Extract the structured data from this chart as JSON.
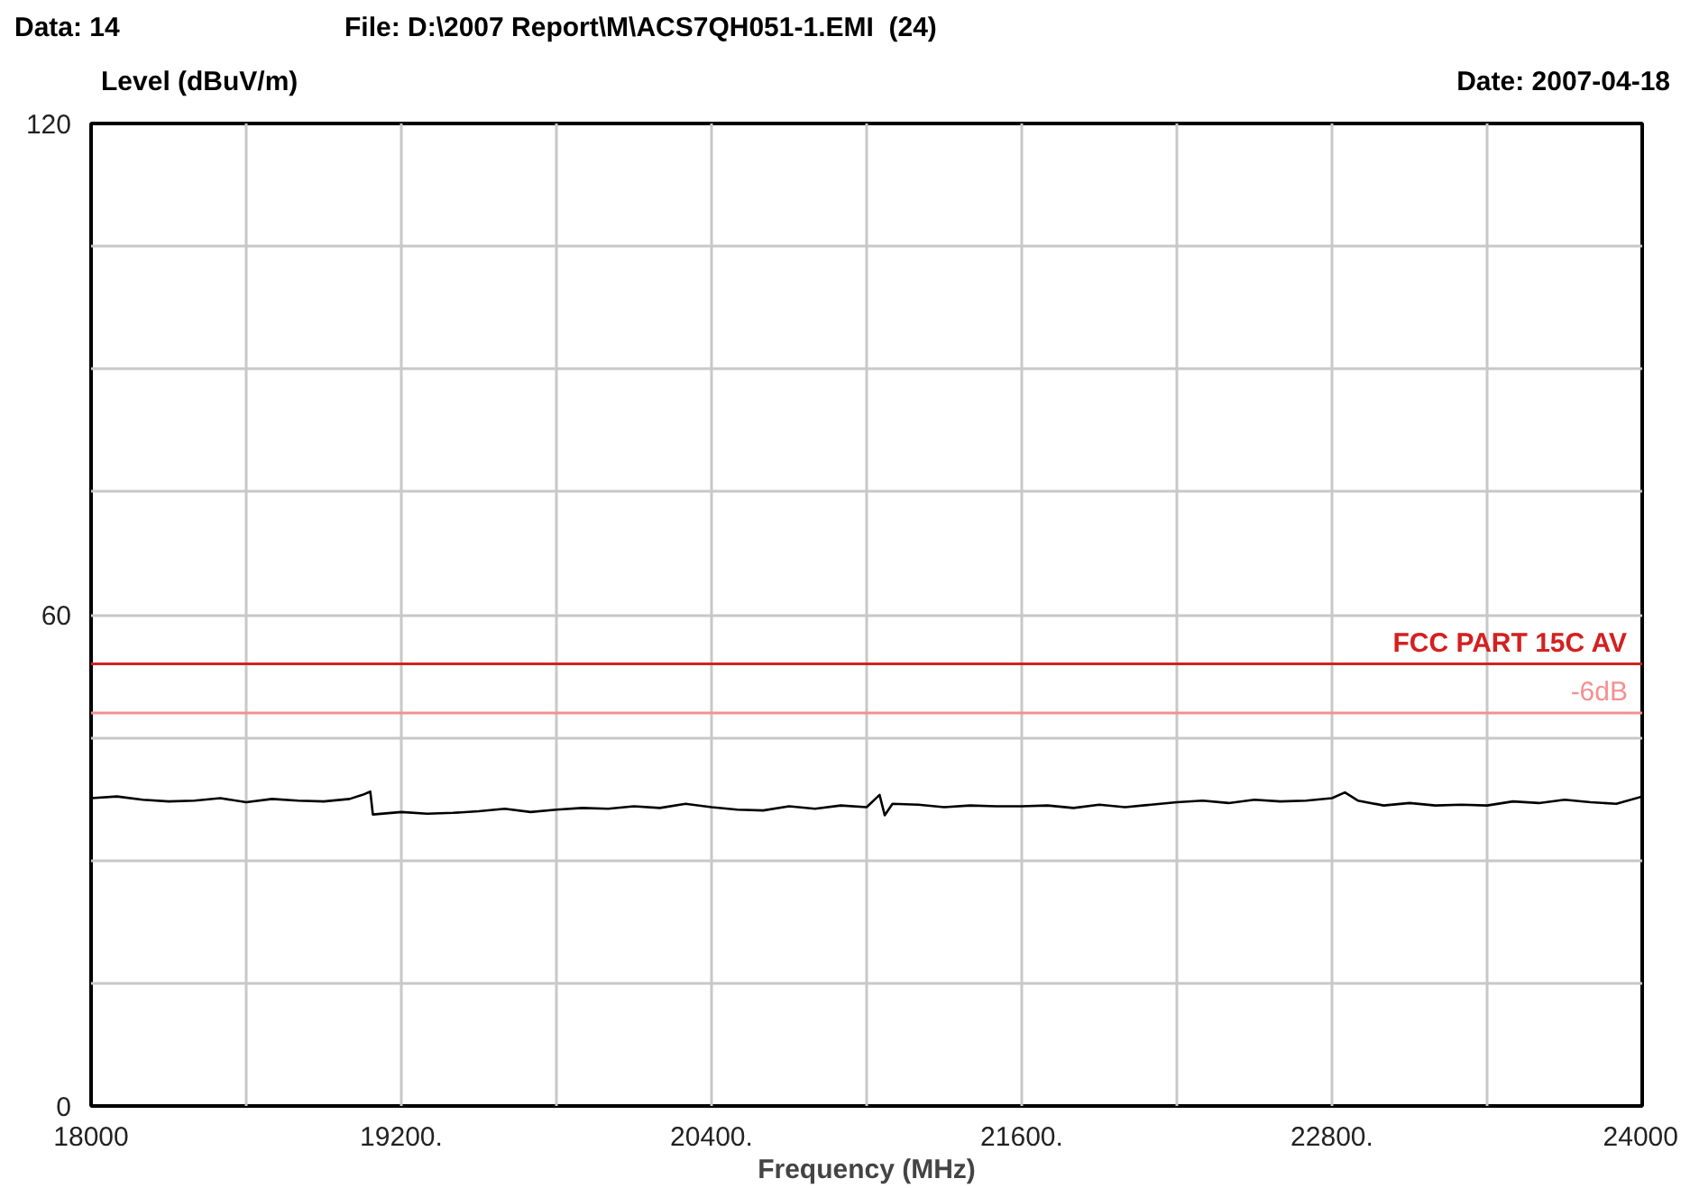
{
  "chart_data": {
    "type": "line",
    "xlabel": "Frequency (MHz)",
    "ylabel": "Level (dBuV/m)",
    "annotations": [
      "Data: 14",
      "File: D:\\2007 Report\\M\\ACS7QH051-1.EMI  (24)",
      "Date: 2007-04-18"
    ],
    "x": [
      18000,
      18100,
      18200,
      18300,
      18400,
      18500,
      18600,
      18700,
      18800,
      18900,
      19000,
      19050,
      19080,
      19090,
      19200,
      19300,
      19400,
      19500,
      19600,
      19700,
      19800,
      19900,
      20000,
      20100,
      20200,
      20300,
      20400,
      20500,
      20600,
      20700,
      20800,
      20900,
      21000,
      21050,
      21070,
      21100,
      21200,
      21300,
      21400,
      21500,
      21600,
      21700,
      21800,
      21900,
      22000,
      22100,
      22200,
      22300,
      22400,
      22500,
      22600,
      22700,
      22800,
      22850,
      22900,
      23000,
      23100,
      23200,
      23300,
      23400,
      23500,
      23600,
      23700,
      23800,
      23900,
      24000
    ],
    "series": [
      {
        "color": "#000000",
        "values": [
          37.6,
          37.8,
          37.4,
          37.2,
          37.3,
          37.6,
          37.1,
          37.5,
          37.3,
          37.2,
          37.5,
          38.0,
          38.4,
          35.6,
          35.9,
          35.7,
          35.8,
          36.0,
          36.3,
          35.9,
          36.2,
          36.4,
          36.3,
          36.6,
          36.4,
          36.9,
          36.5,
          36.2,
          36.1,
          36.6,
          36.3,
          36.7,
          36.5,
          38.0,
          35.5,
          36.9,
          36.8,
          36.5,
          36.7,
          36.6,
          36.6,
          36.7,
          36.4,
          36.8,
          36.5,
          36.8,
          37.1,
          37.3,
          37.0,
          37.4,
          37.2,
          37.3,
          37.6,
          38.3,
          37.3,
          36.7,
          37.0,
          36.7,
          36.8,
          36.7,
          37.2,
          37.0,
          37.4,
          37.1,
          36.9,
          37.8
        ]
      }
    ],
    "xlim": [
      18000,
      24000
    ],
    "xticks": [
      18000,
      {
        "value": 18600,
        "label": null
      },
      {
        "value": 19200,
        "label": "19200."
      },
      {
        "value": 19800,
        "label": null
      },
      {
        "value": 20400,
        "label": "20400."
      },
      {
        "value": 21000,
        "label": null
      },
      {
        "value": 21600,
        "label": "21600."
      },
      {
        "value": 22200,
        "label": null
      },
      {
        "value": 22800,
        "label": "22800."
      },
      {
        "value": 23400,
        "label": null
      },
      24000
    ],
    "ylim": [
      0,
      120
    ],
    "yticks": [
      0,
      {
        "value": 15,
        "label": null
      },
      {
        "value": 30,
        "label": null
      },
      {
        "value": 45,
        "label": null
      },
      60,
      {
        "value": 75,
        "label": null
      },
      {
        "value": 90,
        "label": null
      },
      {
        "value": 105,
        "label": null
      },
      120
    ],
    "ref_lines": [
      {
        "axis": "y",
        "value": 54,
        "label": "FCC PART 15C AV",
        "color": "#d42020"
      },
      {
        "axis": "y",
        "value": 48,
        "label": "-6dB",
        "color": "#f49090"
      }
    ],
    "grid": true,
    "line_style": "solid",
    "marker": "none"
  }
}
